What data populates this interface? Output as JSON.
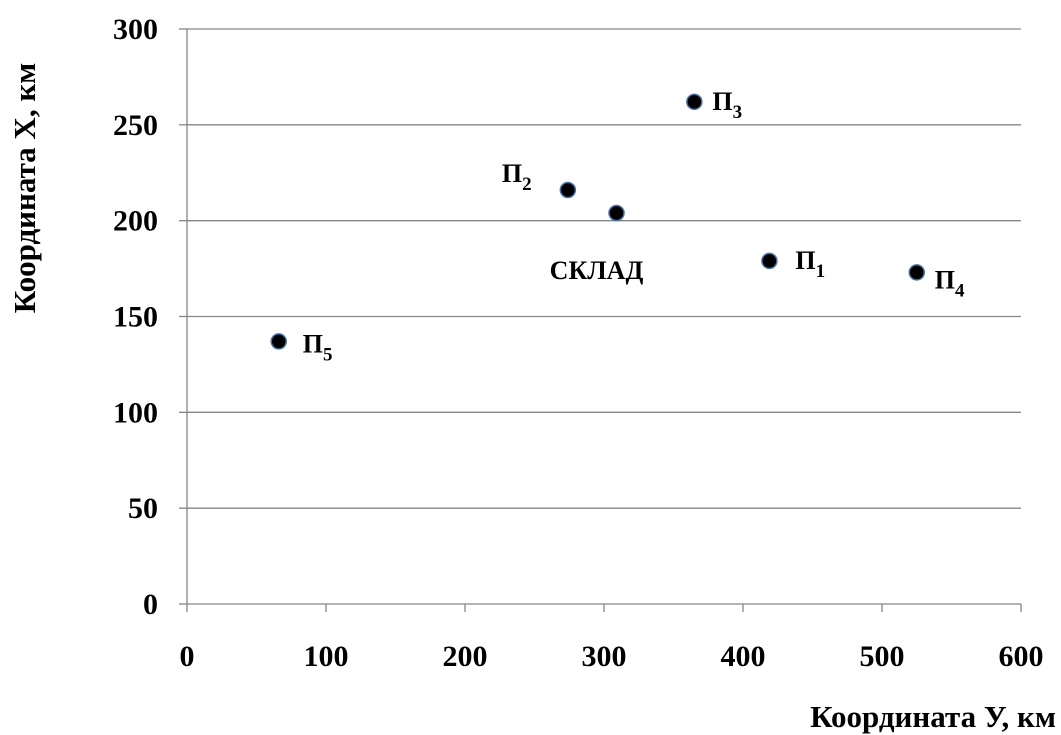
{
  "chart_data": {
    "type": "scatter",
    "title": "",
    "xlabel": "Координата У, км",
    "ylabel": "Координата Х, км",
    "xlim": [
      0,
      600
    ],
    "ylim": [
      0,
      300
    ],
    "xticks": [
      "0",
      "100",
      "200",
      "300",
      "400",
      "500",
      "600"
    ],
    "yticks": [
      "0",
      "50",
      "100",
      "150",
      "200",
      "250",
      "300"
    ],
    "grid": "horizontal",
    "legend": "none",
    "marker_color": "#000000",
    "marker_edge_color": "#4a6fa5",
    "grid_color": "#868686",
    "points": [
      {
        "label": "П",
        "sub": "1",
        "x": 419,
        "y": 179
      },
      {
        "label": "П",
        "sub": "2",
        "x": 274,
        "y": 216
      },
      {
        "label": "П",
        "sub": "3",
        "x": 365,
        "y": 262
      },
      {
        "label": "П",
        "sub": "4",
        "x": 525,
        "y": 173
      },
      {
        "label": "П",
        "sub": "5",
        "x": 66,
        "y": 137
      },
      {
        "label": "СКЛАД",
        "sub": "",
        "x": 309,
        "y": 204
      }
    ]
  }
}
